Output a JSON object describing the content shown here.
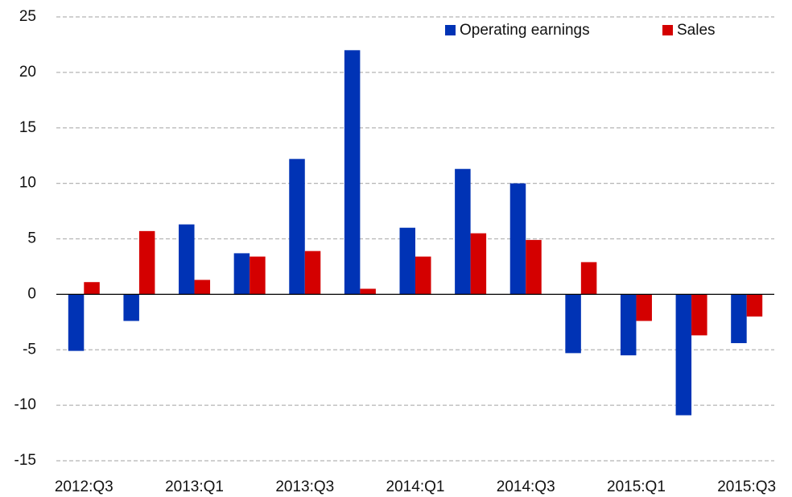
{
  "chart_data": {
    "type": "bar",
    "categories": [
      "2012:Q3",
      null,
      "2013:Q1",
      null,
      "2013:Q3",
      null,
      "2014:Q1",
      null,
      "2014:Q3",
      null,
      "2015:Q1",
      null,
      "2015:Q3"
    ],
    "series": [
      {
        "name": "Operating earnings",
        "color": "#0033b5",
        "values": [
          -5.1,
          -2.4,
          6.3,
          3.7,
          12.2,
          22.0,
          6.0,
          11.3,
          10.0,
          -5.3,
          -5.5,
          -10.9,
          -4.4
        ]
      },
      {
        "name": "Sales",
        "color": "#d40000",
        "values": [
          1.1,
          5.7,
          1.3,
          3.4,
          3.9,
          0.5,
          3.4,
          5.5,
          4.9,
          2.9,
          -2.4,
          -3.7,
          -2.0
        ]
      }
    ],
    "ylim": [
      -15,
      25
    ],
    "yticks": [
      -15,
      -10,
      -5,
      0,
      5,
      10,
      15,
      20,
      25
    ],
    "grid": true,
    "legend": "top"
  }
}
